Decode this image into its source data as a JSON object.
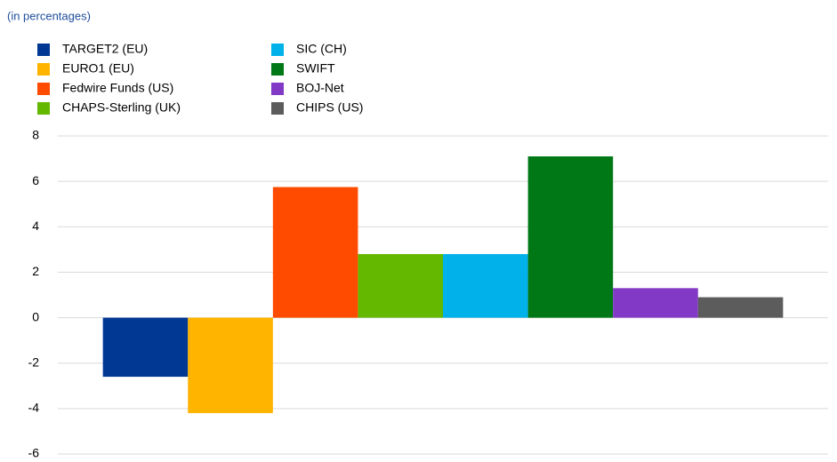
{
  "chart_data": {
    "type": "bar",
    "subtitle": "(in percentages)",
    "categories": [
      null
    ],
    "series": [
      {
        "name": "TARGET2 (EU)",
        "color": "#003894",
        "values": [
          -2.6
        ]
      },
      {
        "name": "EURO1 (EU)",
        "color": "#ffb400",
        "values": [
          -4.2
        ]
      },
      {
        "name": "Fedwire Funds (US)",
        "color": "#ff4b00",
        "values": [
          5.75
        ]
      },
      {
        "name": "CHAPS-Sterling (UK)",
        "color": "#65b800",
        "values": [
          2.8
        ]
      },
      {
        "name": "SIC (CH)",
        "color": "#00b1ea",
        "values": [
          2.8
        ]
      },
      {
        "name": "SWIFT",
        "color": "#007816",
        "values": [
          7.1
        ]
      },
      {
        "name": "BOJ-Net",
        "color": "#8139c6",
        "values": [
          1.3
        ]
      },
      {
        "name": "CHIPS (US)",
        "color": "#5c5c5c",
        "values": [
          0.9
        ]
      }
    ],
    "ylim": [
      -6,
      8
    ],
    "yticks": [
      -6,
      -4,
      -2,
      0,
      2,
      4,
      6,
      8
    ],
    "grid": true,
    "legend": "top"
  }
}
